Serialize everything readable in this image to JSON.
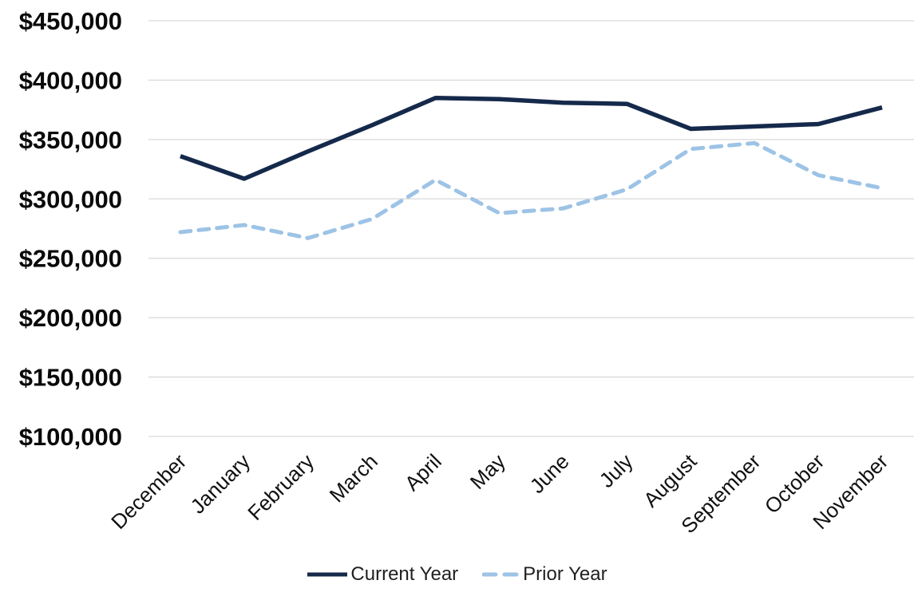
{
  "chart_data": {
    "type": "line",
    "title": "",
    "xlabel": "",
    "ylabel": "",
    "categories": [
      "December",
      "January",
      "February",
      "March",
      "April",
      "May",
      "June",
      "July",
      "August",
      "September",
      "October",
      "November"
    ],
    "series": [
      {
        "name": "Current Year",
        "style": "solid",
        "color": "#15294b",
        "values": [
          336000,
          317000,
          340000,
          362000,
          385000,
          384000,
          381000,
          380000,
          359000,
          361000,
          363000,
          377000
        ]
      },
      {
        "name": "Prior Year",
        "style": "dashed",
        "color": "#9dc3e6",
        "values": [
          272000,
          278000,
          267000,
          283000,
          316000,
          288000,
          292000,
          308000,
          342000,
          347000,
          320000,
          309000
        ]
      }
    ],
    "y_ticks": [
      {
        "value": 450000,
        "label": "$450,000"
      },
      {
        "value": 400000,
        "label": "$400,000"
      },
      {
        "value": 350000,
        "label": "$350,000"
      },
      {
        "value": 300000,
        "label": "$300,000"
      },
      {
        "value": 250000,
        "label": "$250,000"
      },
      {
        "value": 200000,
        "label": "$200,000"
      },
      {
        "value": 150000,
        "label": "$150,000"
      },
      {
        "value": 100000,
        "label": "$100,000"
      }
    ],
    "ylim": [
      100000,
      450000
    ],
    "grid": true,
    "gridline_color": "#d9d9d9",
    "background": "#ffffff",
    "legend_position": "bottom"
  }
}
